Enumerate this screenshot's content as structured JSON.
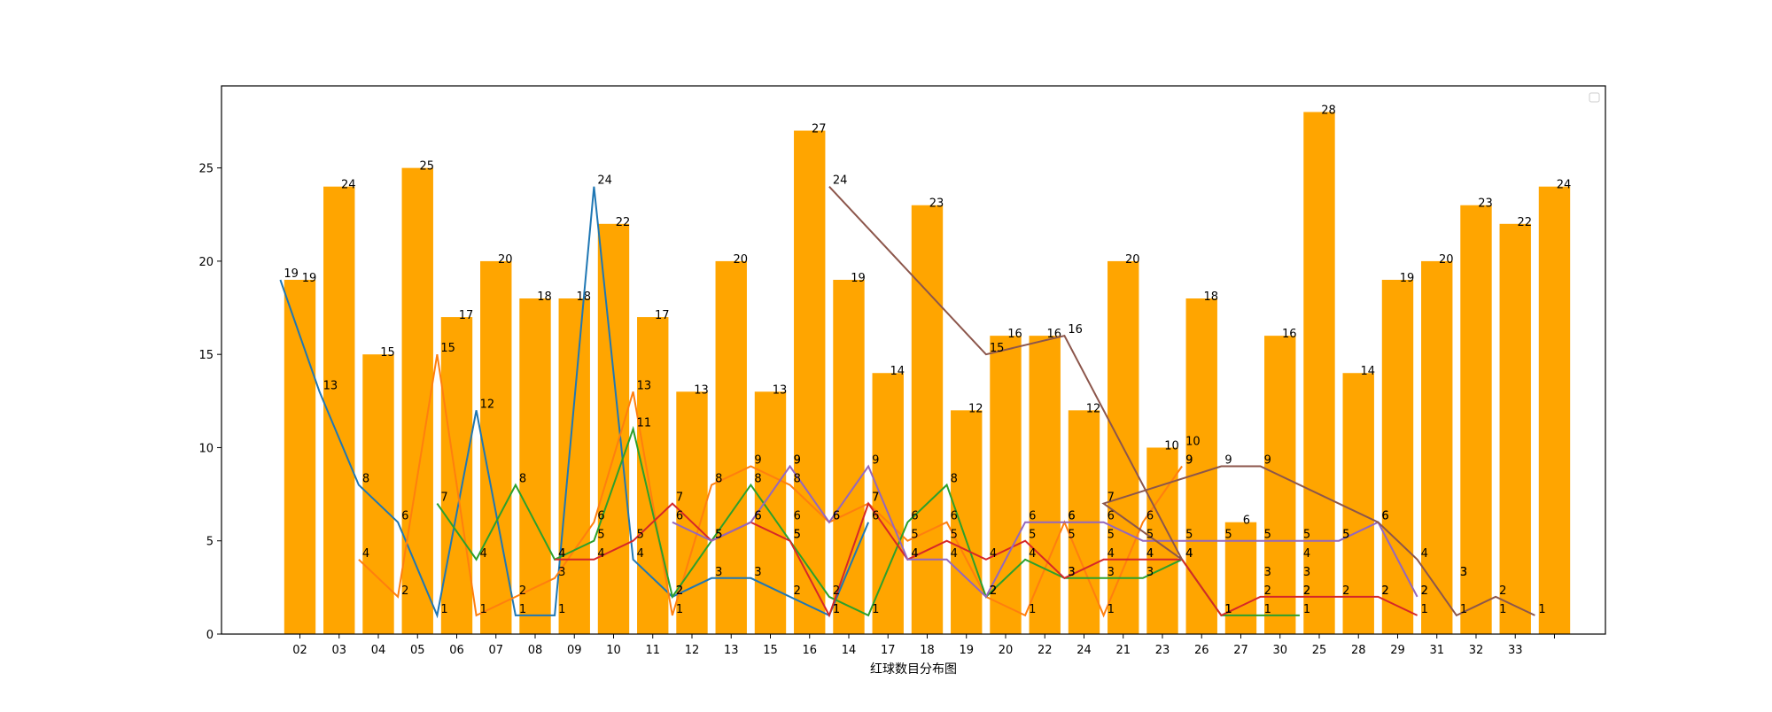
{
  "chart_data": {
    "type": "bar",
    "title": "",
    "xlabel": "红球数目分布图",
    "ylabel": "",
    "ylim": [
      0,
      29.4
    ],
    "yticks": [
      0,
      5,
      10,
      15,
      20,
      25
    ],
    "grid": false,
    "legend": "top-right",
    "bar_color": "#ffa500",
    "categories": [
      "02",
      "03",
      "04",
      "05",
      "06",
      "07",
      "08",
      "09",
      "10",
      "11",
      "12",
      "13",
      "15",
      "16",
      "14",
      "17",
      "18",
      "19",
      "20",
      "22",
      "24",
      "21",
      "23",
      "26",
      "27",
      "30",
      "25",
      "28",
      "29",
      "31",
      "32",
      "33",
      ""
    ],
    "values": [
      19,
      24,
      15,
      25,
      17,
      20,
      18,
      18,
      22,
      17,
      13,
      20,
      13,
      27,
      19,
      14,
      23,
      12,
      16,
      16,
      12,
      20,
      10,
      18,
      6,
      16,
      28,
      14,
      19,
      20,
      23,
      22,
      24
    ],
    "series": [
      {
        "color": "#1f77b4",
        "points": [
          [
            -0.5,
            19
          ],
          [
            0.5,
            13
          ],
          [
            1.5,
            8
          ],
          [
            2.5,
            6
          ],
          [
            3.5,
            1
          ],
          [
            4.5,
            12
          ],
          [
            5.5,
            1
          ],
          [
            6.5,
            1
          ],
          [
            7.5,
            24
          ],
          [
            8.5,
            4
          ],
          [
            9.5,
            2
          ],
          [
            10.5,
            3
          ],
          [
            11.5,
            3
          ],
          [
            12.5,
            2
          ],
          [
            13.5,
            1
          ],
          [
            14.5,
            6
          ]
        ]
      },
      {
        "color": "#ff7f0e",
        "points": [
          [
            1.5,
            4
          ],
          [
            2.5,
            2
          ],
          [
            3.5,
            15
          ],
          [
            4.5,
            1
          ],
          [
            5.5,
            2
          ],
          [
            6.5,
            3
          ],
          [
            7.5,
            6
          ],
          [
            8.5,
            13
          ],
          [
            9.5,
            1
          ],
          [
            10.5,
            8
          ],
          [
            11.5,
            9
          ],
          [
            12.5,
            8
          ],
          [
            13.5,
            6
          ],
          [
            14.5,
            7
          ],
          [
            15.5,
            5
          ],
          [
            16.5,
            6
          ],
          [
            17.5,
            2
          ],
          [
            18.5,
            1
          ],
          [
            19.5,
            6
          ],
          [
            20.5,
            1
          ],
          [
            21.5,
            6
          ],
          [
            22.5,
            9
          ]
        ]
      },
      {
        "color": "#2ca02c",
        "points": [
          [
            3.5,
            7
          ],
          [
            4.5,
            4
          ],
          [
            5.5,
            8
          ],
          [
            6.5,
            4
          ],
          [
            7.5,
            5
          ],
          [
            8.5,
            11
          ],
          [
            9.5,
            2
          ],
          [
            10.5,
            5
          ],
          [
            11.5,
            8
          ],
          [
            12.5,
            5
          ],
          [
            13.5,
            2
          ],
          [
            14.5,
            1
          ],
          [
            15.5,
            6
          ],
          [
            16.5,
            8
          ],
          [
            17.5,
            2
          ],
          [
            18.5,
            4
          ],
          [
            19.5,
            3
          ],
          [
            20.5,
            3
          ],
          [
            21.5,
            3
          ],
          [
            22.5,
            4
          ],
          [
            23.5,
            1
          ],
          [
            24.5,
            1
          ],
          [
            25.5,
            1
          ]
        ]
      },
      {
        "color": "#d62728",
        "points": [
          [
            6.5,
            4
          ],
          [
            7.5,
            4
          ],
          [
            8.5,
            5
          ],
          [
            9.5,
            7
          ],
          [
            10.5,
            5
          ],
          [
            11.5,
            6
          ],
          [
            12.5,
            5
          ],
          [
            13.5,
            1
          ],
          [
            14.5,
            7
          ],
          [
            15.5,
            4
          ],
          [
            16.5,
            5
          ],
          [
            17.5,
            4
          ],
          [
            18.5,
            5
          ],
          [
            19.5,
            3
          ],
          [
            20.5,
            4
          ],
          [
            21.5,
            4
          ],
          [
            22.5,
            4
          ],
          [
            23.5,
            1
          ],
          [
            24.5,
            2
          ],
          [
            25.5,
            2
          ],
          [
            26.5,
            2
          ],
          [
            27.5,
            2
          ],
          [
            28.5,
            1
          ]
        ]
      },
      {
        "color": "#9467bd",
        "points": [
          [
            9.5,
            6
          ],
          [
            10.5,
            5
          ],
          [
            11.5,
            6
          ],
          [
            12.5,
            9
          ],
          [
            13.5,
            6
          ],
          [
            14.5,
            9
          ],
          [
            15.5,
            4
          ],
          [
            16.5,
            4
          ],
          [
            17.5,
            2
          ],
          [
            18.5,
            6
          ],
          [
            19.5,
            6
          ],
          [
            20.5,
            6
          ],
          [
            21.5,
            5
          ],
          [
            22.5,
            5
          ],
          [
            23.5,
            5
          ],
          [
            24.5,
            5
          ],
          [
            25.5,
            5
          ],
          [
            26.5,
            5
          ],
          [
            27.5,
            6
          ],
          [
            28.5,
            2
          ]
        ]
      },
      {
        "color": "#8c564b",
        "points": [
          [
            13.5,
            24
          ],
          [
            17.5,
            15
          ],
          [
            19.5,
            16
          ],
          [
            22.5,
            4
          ],
          [
            20.5,
            7
          ],
          [
            23.5,
            9
          ],
          [
            24.5,
            9
          ],
          [
            27.5,
            6
          ],
          [
            28.5,
            4
          ],
          [
            29.5,
            1
          ],
          [
            30.5,
            2
          ],
          [
            31.5,
            1
          ]
        ]
      }
    ],
    "extra_labels": [
      {
        "x": 12.5,
        "y": 9,
        "label": "9"
      },
      {
        "x": 12.5,
        "y": 6,
        "label": "6"
      },
      {
        "x": 19.5,
        "y": 5,
        "label": "5"
      },
      {
        "x": 20.5,
        "y": 5,
        "label": "5"
      },
      {
        "x": 21.5,
        "y": 4,
        "label": "4"
      },
      {
        "x": 22.5,
        "y": 10,
        "label": "10"
      },
      {
        "x": 22.5,
        "y": 9,
        "label": "9"
      },
      {
        "x": 23.5,
        "y": 1,
        "label": "1"
      },
      {
        "x": 24.5,
        "y": 3,
        "label": "3"
      },
      {
        "x": 25.5,
        "y": 4,
        "label": "4"
      },
      {
        "x": 25.5,
        "y": 3,
        "label": "3"
      },
      {
        "x": 25.5,
        "y": 2,
        "label": "2"
      },
      {
        "x": 26.5,
        "y": 5,
        "label": "5"
      },
      {
        "x": 27.5,
        "y": 2,
        "label": "2"
      },
      {
        "x": 28.5,
        "y": 2,
        "label": "2"
      },
      {
        "x": 29.5,
        "y": 3,
        "label": "3"
      },
      {
        "x": 29.5,
        "y": 3,
        "label": "3"
      },
      {
        "x": 30.5,
        "y": 1,
        "label": "1"
      }
    ]
  }
}
